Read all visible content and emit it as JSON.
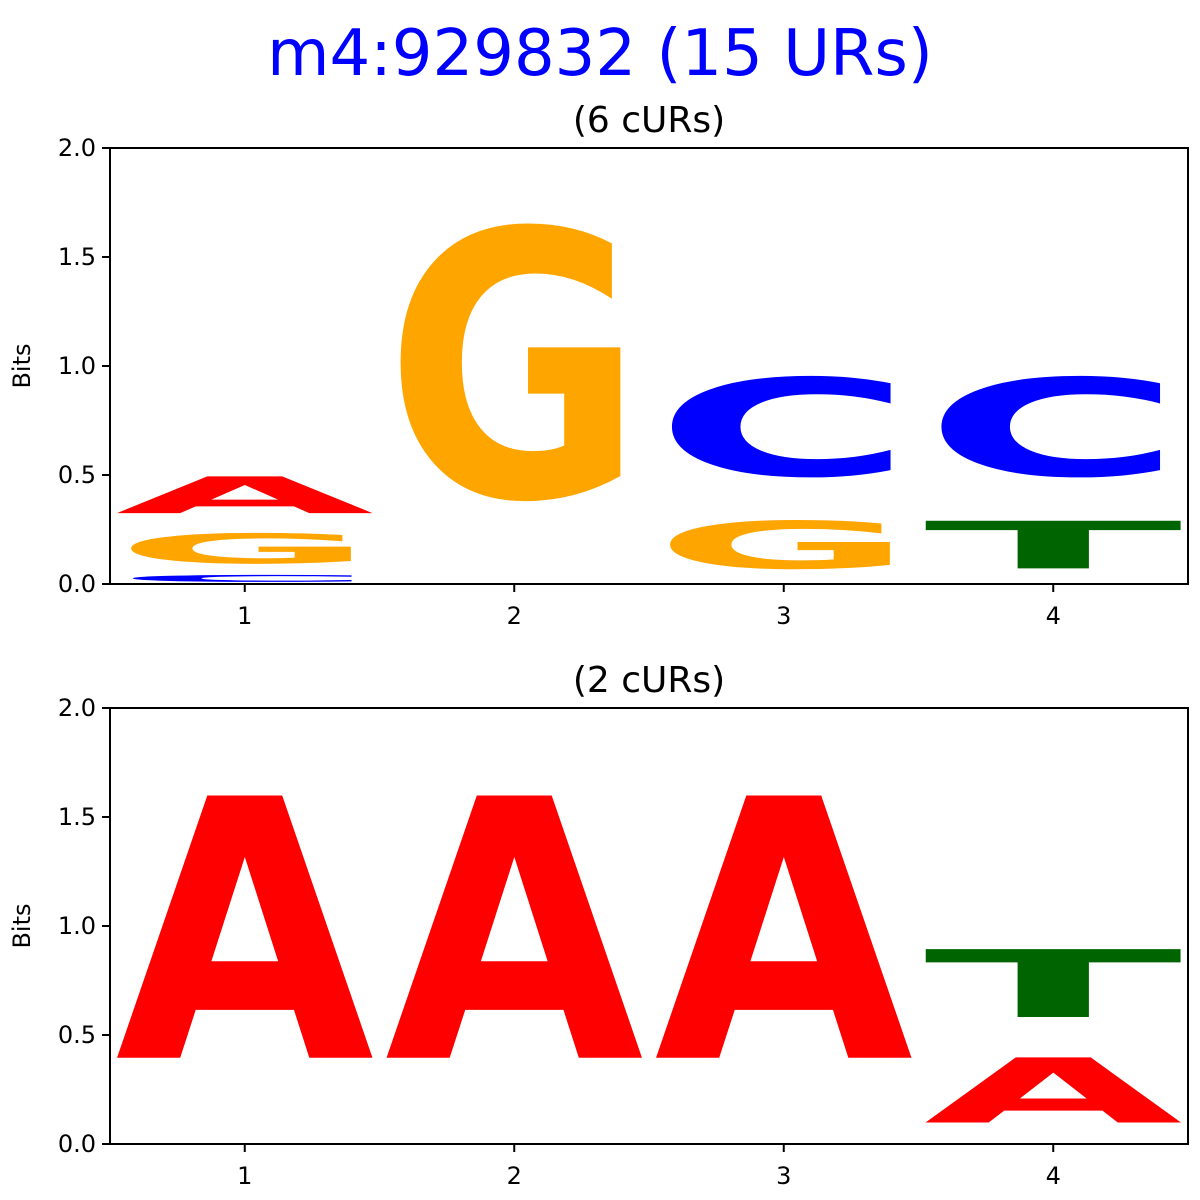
{
  "title": "m4:929832 (15 URs)",
  "colors": {
    "title": "#0000ff",
    "A": "#ff0000",
    "C": "#0000ff",
    "G": "#ffa500",
    "T": "#006400"
  },
  "chart_data": [
    {
      "type": "sequence-logo",
      "title": "(6 cURs)",
      "ylabel": "Bits",
      "ylim": [
        0,
        2.0
      ],
      "yticks": [
        "0.0",
        "0.5",
        "1.0",
        "1.5",
        "2.0"
      ],
      "positions": [
        "1",
        "2",
        "3",
        "4"
      ],
      "stacks": [
        [
          {
            "letter": "C",
            "bits": 0.05
          },
          {
            "letter": "G",
            "bits": 0.22
          },
          {
            "letter": "A",
            "bits": 0.27
          }
        ],
        [
          {
            "letter": "G",
            "bits": 1.97
          }
        ],
        [
          {
            "letter": "G",
            "bits": 0.35
          },
          {
            "letter": "C",
            "bits": 0.72
          }
        ],
        [
          {
            "letter": "T",
            "bits": 0.35
          },
          {
            "letter": "C",
            "bits": 0.72
          }
        ]
      ]
    },
    {
      "type": "sequence-logo",
      "title": "(2 cURs)",
      "ylabel": "Bits",
      "ylim": [
        0,
        2.0
      ],
      "yticks": [
        "0.0",
        "0.5",
        "1.0",
        "1.5",
        "2.0"
      ],
      "positions": [
        "1",
        "2",
        "3",
        "4"
      ],
      "stacks": [
        [
          {
            "letter": "A",
            "bits": 1.93
          }
        ],
        [
          {
            "letter": "A",
            "bits": 1.93
          }
        ],
        [
          {
            "letter": "A",
            "bits": 1.93
          }
        ],
        [
          {
            "letter": "A",
            "bits": 0.48
          },
          {
            "letter": "T",
            "bits": 0.5
          }
        ]
      ]
    }
  ]
}
